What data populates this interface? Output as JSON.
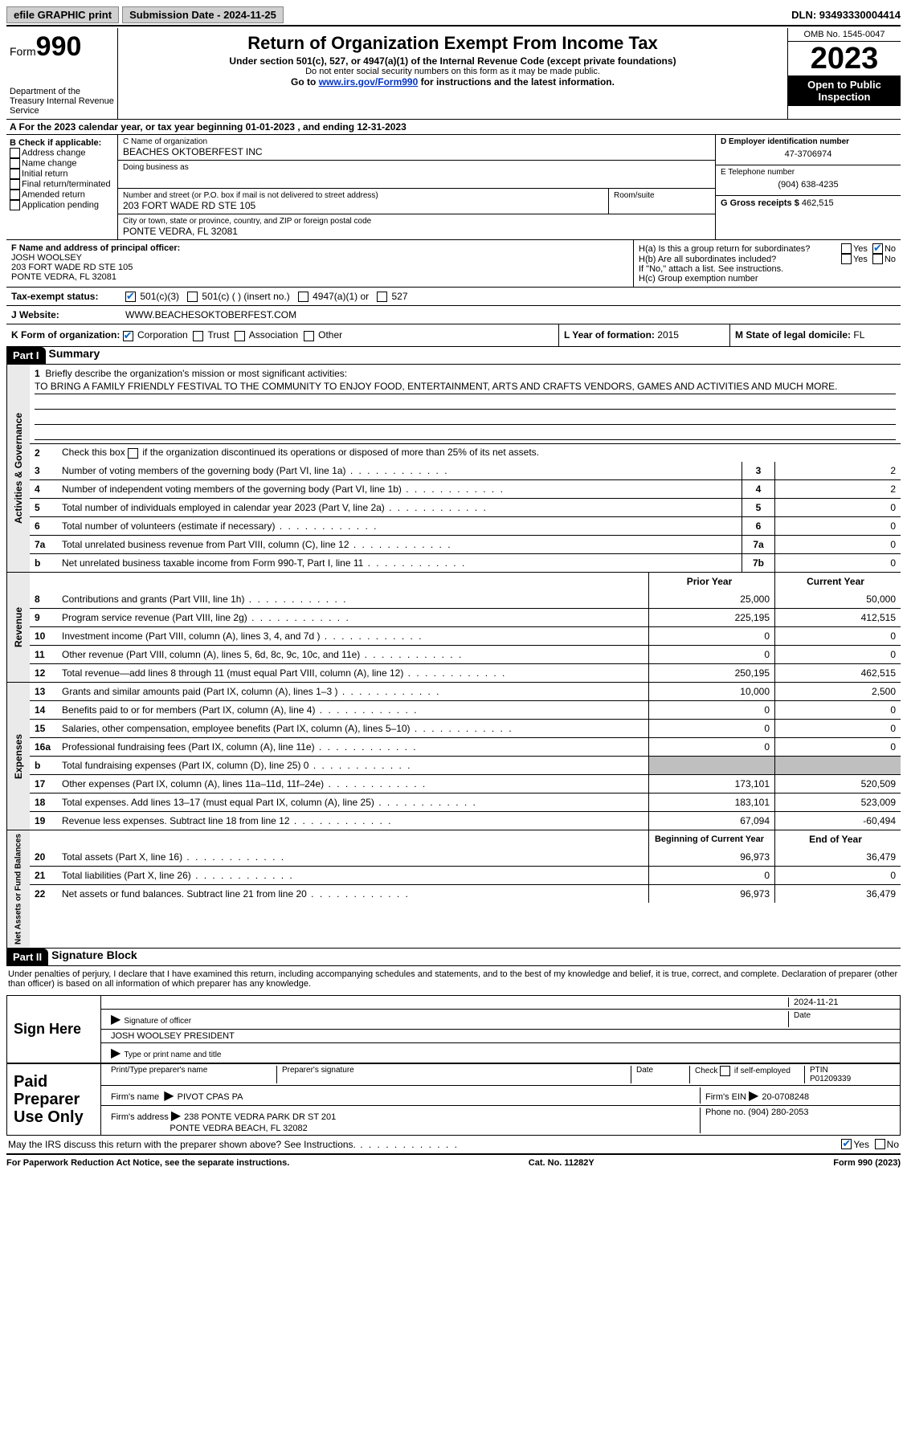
{
  "topbar": {
    "efile": "efile GRAPHIC print",
    "submission": "Submission Date - 2024-11-25",
    "dln": "DLN: 93493330004414"
  },
  "header": {
    "form_label": "Form",
    "form_num": "990",
    "dept": "Department of the Treasury Internal Revenue Service",
    "title": "Return of Organization Exempt From Income Tax",
    "sub1": "Under section 501(c), 527, or 4947(a)(1) of the Internal Revenue Code (except private foundations)",
    "sub2": "Do not enter social security numbers on this form as it may be made public.",
    "sub3_pre": "Go to ",
    "sub3_link": "www.irs.gov/Form990",
    "sub3_post": " for instructions and the latest information.",
    "omb": "OMB No. 1545-0047",
    "year": "2023",
    "open": "Open to Public Inspection"
  },
  "row_a": "A   For the 2023 calendar year, or tax year beginning 01-01-2023    , and ending 12-31-2023",
  "col_b": {
    "label": "B Check if applicable:",
    "items": [
      "Address change",
      "Name change",
      "Initial return",
      "Final return/terminated",
      "Amended return",
      "Application pending"
    ]
  },
  "col_c": {
    "name_lbl": "C Name of organization",
    "name": "BEACHES OKTOBERFEST INC",
    "dba_lbl": "Doing business as",
    "street_lbl": "Number and street (or P.O. box if mail is not delivered to street address)",
    "street": "203 FORT WADE RD STE 105",
    "room_lbl": "Room/suite",
    "city_lbl": "City or town, state or province, country, and ZIP or foreign postal code",
    "city": "PONTE VEDRA, FL  32081"
  },
  "col_d": {
    "ein_lbl": "D Employer identification number",
    "ein": "47-3706974",
    "phone_lbl": "E Telephone number",
    "phone": "(904) 638-4235",
    "gross_lbl": "G Gross receipts $",
    "gross": "462,515"
  },
  "col_f": {
    "lbl": "F Name and address of principal officer:",
    "name": "JOSH WOOLSEY",
    "addr1": "203 FORT WADE RD STE 105",
    "addr2": "PONTE VEDRA, FL  32081"
  },
  "col_h": {
    "ha": "H(a)  Is this a group return for subordinates?",
    "hb": "H(b)  Are all subordinates included?",
    "hb_note": "If \"No,\" attach a list. See instructions.",
    "hc": "H(c)  Group exemption number",
    "yes": "Yes",
    "no": "No"
  },
  "row_i": {
    "lbl": "Tax-exempt status:",
    "opt1": "501(c)(3)",
    "opt2": "501(c) (  ) (insert no.)",
    "opt3": "4947(a)(1) or",
    "opt4": "527"
  },
  "row_j": {
    "lbl": "J    Website:",
    "val": "WWW.BEACHESOKTOBERFEST.COM"
  },
  "row_k": {
    "lbl": "K Form of organization:",
    "corp": "Corporation",
    "trust": "Trust",
    "assoc": "Association",
    "other": "Other"
  },
  "row_l": {
    "lbl": "L Year of formation:",
    "val": "2015"
  },
  "row_m": {
    "lbl": "M State of legal domicile:",
    "val": "FL"
  },
  "part1": {
    "hdr": "Part I",
    "title": "Summary"
  },
  "summary": {
    "q1_lbl": "Briefly describe the organization's mission or most significant activities:",
    "q1_val": "TO BRING A FAMILY FRIENDLY FESTIVAL TO THE COMMUNITY TO ENJOY FOOD, ENTERTAINMENT, ARTS AND CRAFTS VENDORS, GAMES AND ACTIVITIES AND MUCH MORE.",
    "q2": "Check this box         if the organization discontinued its operations or disposed of more than 25% of its net assets.",
    "lines_gov": [
      {
        "n": "3",
        "t": "Number of voting members of the governing body (Part VI, line 1a)",
        "box": "3",
        "v": "2"
      },
      {
        "n": "4",
        "t": "Number of independent voting members of the governing body (Part VI, line 1b)",
        "box": "4",
        "v": "2"
      },
      {
        "n": "5",
        "t": "Total number of individuals employed in calendar year 2023 (Part V, line 2a)",
        "box": "5",
        "v": "0"
      },
      {
        "n": "6",
        "t": "Total number of volunteers (estimate if necessary)",
        "box": "6",
        "v": "0"
      },
      {
        "n": "7a",
        "t": "Total unrelated business revenue from Part VIII, column (C), line 12",
        "box": "7a",
        "v": "0"
      },
      {
        "n": "b",
        "t": "Net unrelated business taxable income from Form 990-T, Part I, line 11",
        "box": "7b",
        "v": "0"
      }
    ],
    "hdr_prior": "Prior Year",
    "hdr_current": "Current Year",
    "revenue": [
      {
        "n": "8",
        "t": "Contributions and grants (Part VIII, line 1h)",
        "p": "25,000",
        "c": "50,000"
      },
      {
        "n": "9",
        "t": "Program service revenue (Part VIII, line 2g)",
        "p": "225,195",
        "c": "412,515"
      },
      {
        "n": "10",
        "t": "Investment income (Part VIII, column (A), lines 3, 4, and 7d )",
        "p": "0",
        "c": "0"
      },
      {
        "n": "11",
        "t": "Other revenue (Part VIII, column (A), lines 5, 6d, 8c, 9c, 10c, and 11e)",
        "p": "0",
        "c": "0"
      },
      {
        "n": "12",
        "t": "Total revenue—add lines 8 through 11 (must equal Part VIII, column (A), line 12)",
        "p": "250,195",
        "c": "462,515"
      }
    ],
    "expenses": [
      {
        "n": "13",
        "t": "Grants and similar amounts paid (Part IX, column (A), lines 1–3 )",
        "p": "10,000",
        "c": "2,500"
      },
      {
        "n": "14",
        "t": "Benefits paid to or for members (Part IX, column (A), line 4)",
        "p": "0",
        "c": "0"
      },
      {
        "n": "15",
        "t": "Salaries, other compensation, employee benefits (Part IX, column (A), lines 5–10)",
        "p": "0",
        "c": "0"
      },
      {
        "n": "16a",
        "t": "Professional fundraising fees (Part IX, column (A), line 11e)",
        "p": "0",
        "c": "0"
      },
      {
        "n": "b",
        "t": "Total fundraising expenses (Part IX, column (D), line 25) 0",
        "p": "shade",
        "c": "shade"
      },
      {
        "n": "17",
        "t": "Other expenses (Part IX, column (A), lines 11a–11d, 11f–24e)",
        "p": "173,101",
        "c": "520,509"
      },
      {
        "n": "18",
        "t": "Total expenses. Add lines 13–17 (must equal Part IX, column (A), line 25)",
        "p": "183,101",
        "c": "523,009"
      },
      {
        "n": "19",
        "t": "Revenue less expenses. Subtract line 18 from line 12",
        "p": "67,094",
        "c": "-60,494"
      }
    ],
    "hdr_begin": "Beginning of Current Year",
    "hdr_end": "End of Year",
    "netassets": [
      {
        "n": "20",
        "t": "Total assets (Part X, line 16)",
        "p": "96,973",
        "c": "36,479"
      },
      {
        "n": "21",
        "t": "Total liabilities (Part X, line 26)",
        "p": "0",
        "c": "0"
      },
      {
        "n": "22",
        "t": "Net assets or fund balances. Subtract line 21 from line 20",
        "p": "96,973",
        "c": "36,479"
      }
    ],
    "side_gov": "Activities & Governance",
    "side_rev": "Revenue",
    "side_exp": "Expenses",
    "side_net": "Net Assets or Fund Balances"
  },
  "part2": {
    "hdr": "Part II",
    "title": "Signature Block"
  },
  "penalty": "Under penalties of perjury, I declare that I have examined this return, including accompanying schedules and statements, and to the best of my knowledge and belief, it is true, correct, and complete. Declaration of preparer (other than officer) is based on all information of which preparer has any knowledge.",
  "sign": {
    "here": "Sign Here",
    "sig_lbl": "Signature of officer",
    "date_lbl": "Date",
    "date_val": "2024-11-21",
    "name": "JOSH WOOLSEY PRESIDENT",
    "name_lbl": "Type or print name and title"
  },
  "paid": {
    "lbl": "Paid Preparer Use Only",
    "prep_name_lbl": "Print/Type preparer's name",
    "prep_sig_lbl": "Preparer's signature",
    "check_lbl": "Check         if self-employed",
    "ptin_lbl": "PTIN",
    "ptin": "P01209339",
    "firm_name_lbl": "Firm's name",
    "firm_name": "PIVOT CPAS PA",
    "firm_ein_lbl": "Firm's EIN",
    "firm_ein": "20-0708248",
    "firm_addr_lbl": "Firm's address",
    "firm_addr1": "238 PONTE VEDRA PARK DR ST 201",
    "firm_addr2": "PONTE VEDRA BEACH, FL  32082",
    "phone_lbl": "Phone no.",
    "phone": "(904) 280-2053"
  },
  "discuss": "May the IRS discuss this return with the preparer shown above? See Instructions.",
  "footer": {
    "left": "For Paperwork Reduction Act Notice, see the separate instructions.",
    "mid": "Cat. No. 11282Y",
    "right": "Form 990 (2023)"
  }
}
